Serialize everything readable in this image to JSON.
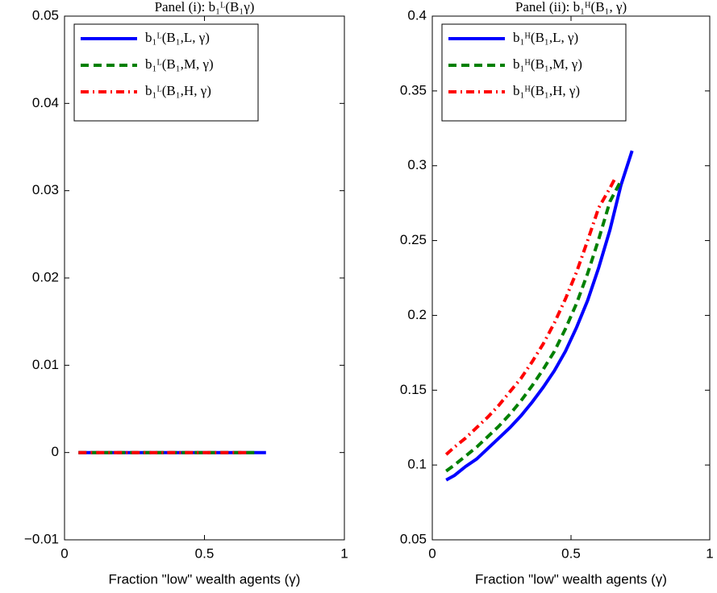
{
  "chart_data": [
    {
      "type": "line",
      "title": "Panel (i): b₁ᴸ(B₁γ)",
      "x_label": "Fraction \"low\" wealth agents (γ)",
      "xlim": [
        0,
        1
      ],
      "xticks": [
        0,
        0.5,
        1
      ],
      "ylim": [
        -0.01,
        0.05
      ],
      "yticks": [
        {
          "value": -0.01,
          "label": "−0.01"
        },
        0,
        0.01,
        0.02,
        0.03,
        0.04,
        0.05
      ],
      "legend": "upper left",
      "series": [
        {
          "name": "b₁ᴸ(B₁,L, γ)",
          "color": "#0000ff",
          "style": "solid",
          "x": [
            0.05,
            0.08,
            0.12,
            0.16,
            0.2,
            0.24,
            0.28,
            0.32,
            0.36,
            0.4,
            0.44,
            0.48,
            0.52,
            0.56,
            0.6,
            0.64,
            0.68,
            0.72
          ],
          "values": [
            0,
            0,
            0,
            0,
            0,
            0,
            0,
            0,
            0,
            0,
            0,
            0,
            0,
            0,
            0,
            0,
            0,
            0
          ]
        },
        {
          "name": "b₁ᴸ(B₁,M, γ)",
          "color": "#008000",
          "style": "dashed",
          "x": [
            0.05,
            0.08,
            0.12,
            0.16,
            0.2,
            0.24,
            0.28,
            0.32,
            0.36,
            0.4,
            0.44,
            0.48,
            0.52,
            0.56,
            0.6,
            0.64,
            0.68
          ],
          "values": [
            0,
            0,
            0,
            0,
            0,
            0,
            0,
            0,
            0,
            0,
            0,
            0,
            0,
            0,
            0,
            0,
            0
          ]
        },
        {
          "name": "b₁ᴸ(B₁,H, γ)",
          "color": "#ff0000",
          "style": "dashdot",
          "x": [
            0.05,
            0.08,
            0.12,
            0.16,
            0.2,
            0.24,
            0.28,
            0.32,
            0.36,
            0.4,
            0.44,
            0.48,
            0.52,
            0.56,
            0.6,
            0.64,
            0.66
          ],
          "values": [
            0,
            0,
            0,
            0,
            0,
            0,
            0,
            0,
            0,
            0,
            0,
            0,
            0,
            0,
            0,
            0,
            0
          ]
        }
      ]
    },
    {
      "type": "line",
      "title": "Panel (ii): b₁ᴴ(B₁, γ)",
      "x_label": "Fraction \"low\" wealth agents (γ)",
      "xlim": [
        0,
        1
      ],
      "xticks": [
        0,
        0.5,
        1
      ],
      "ylim": [
        0.05,
        0.4
      ],
      "yticks": [
        0.05,
        0.1,
        0.15,
        0.2,
        0.25,
        0.3,
        0.35,
        0.4
      ],
      "legend": "upper left",
      "series": [
        {
          "name": "b₁ᴴ(B₁,L, γ)",
          "color": "#0000ff",
          "style": "solid",
          "x": [
            0.05,
            0.08,
            0.12,
            0.16,
            0.2,
            0.24,
            0.28,
            0.32,
            0.36,
            0.4,
            0.44,
            0.48,
            0.52,
            0.56,
            0.6,
            0.64,
            0.68,
            0.72
          ],
          "values": [
            0.09,
            0.093,
            0.099,
            0.104,
            0.111,
            0.118,
            0.125,
            0.133,
            0.142,
            0.152,
            0.163,
            0.176,
            0.192,
            0.21,
            0.232,
            0.257,
            0.287,
            0.31
          ]
        },
        {
          "name": "b₁ᴴ(B₁,M, γ)",
          "color": "#008000",
          "style": "dashed",
          "x": [
            0.05,
            0.08,
            0.12,
            0.16,
            0.2,
            0.24,
            0.28,
            0.32,
            0.36,
            0.4,
            0.44,
            0.48,
            0.52,
            0.56,
            0.6,
            0.64,
            0.68
          ],
          "values": [
            0.096,
            0.1,
            0.106,
            0.112,
            0.119,
            0.126,
            0.134,
            0.143,
            0.153,
            0.164,
            0.176,
            0.191,
            0.208,
            0.228,
            0.251,
            0.276,
            0.29
          ]
        },
        {
          "name": "b₁ᴴ(B₁,H, γ)",
          "color": "#ff0000",
          "style": "dashdot",
          "x": [
            0.05,
            0.08,
            0.12,
            0.16,
            0.2,
            0.24,
            0.28,
            0.32,
            0.36,
            0.4,
            0.44,
            0.48,
            0.52,
            0.56,
            0.6,
            0.64,
            0.66
          ],
          "values": [
            0.107,
            0.112,
            0.118,
            0.125,
            0.132,
            0.14,
            0.149,
            0.158,
            0.169,
            0.181,
            0.195,
            0.211,
            0.229,
            0.25,
            0.272,
            0.285,
            0.292
          ]
        }
      ]
    }
  ]
}
